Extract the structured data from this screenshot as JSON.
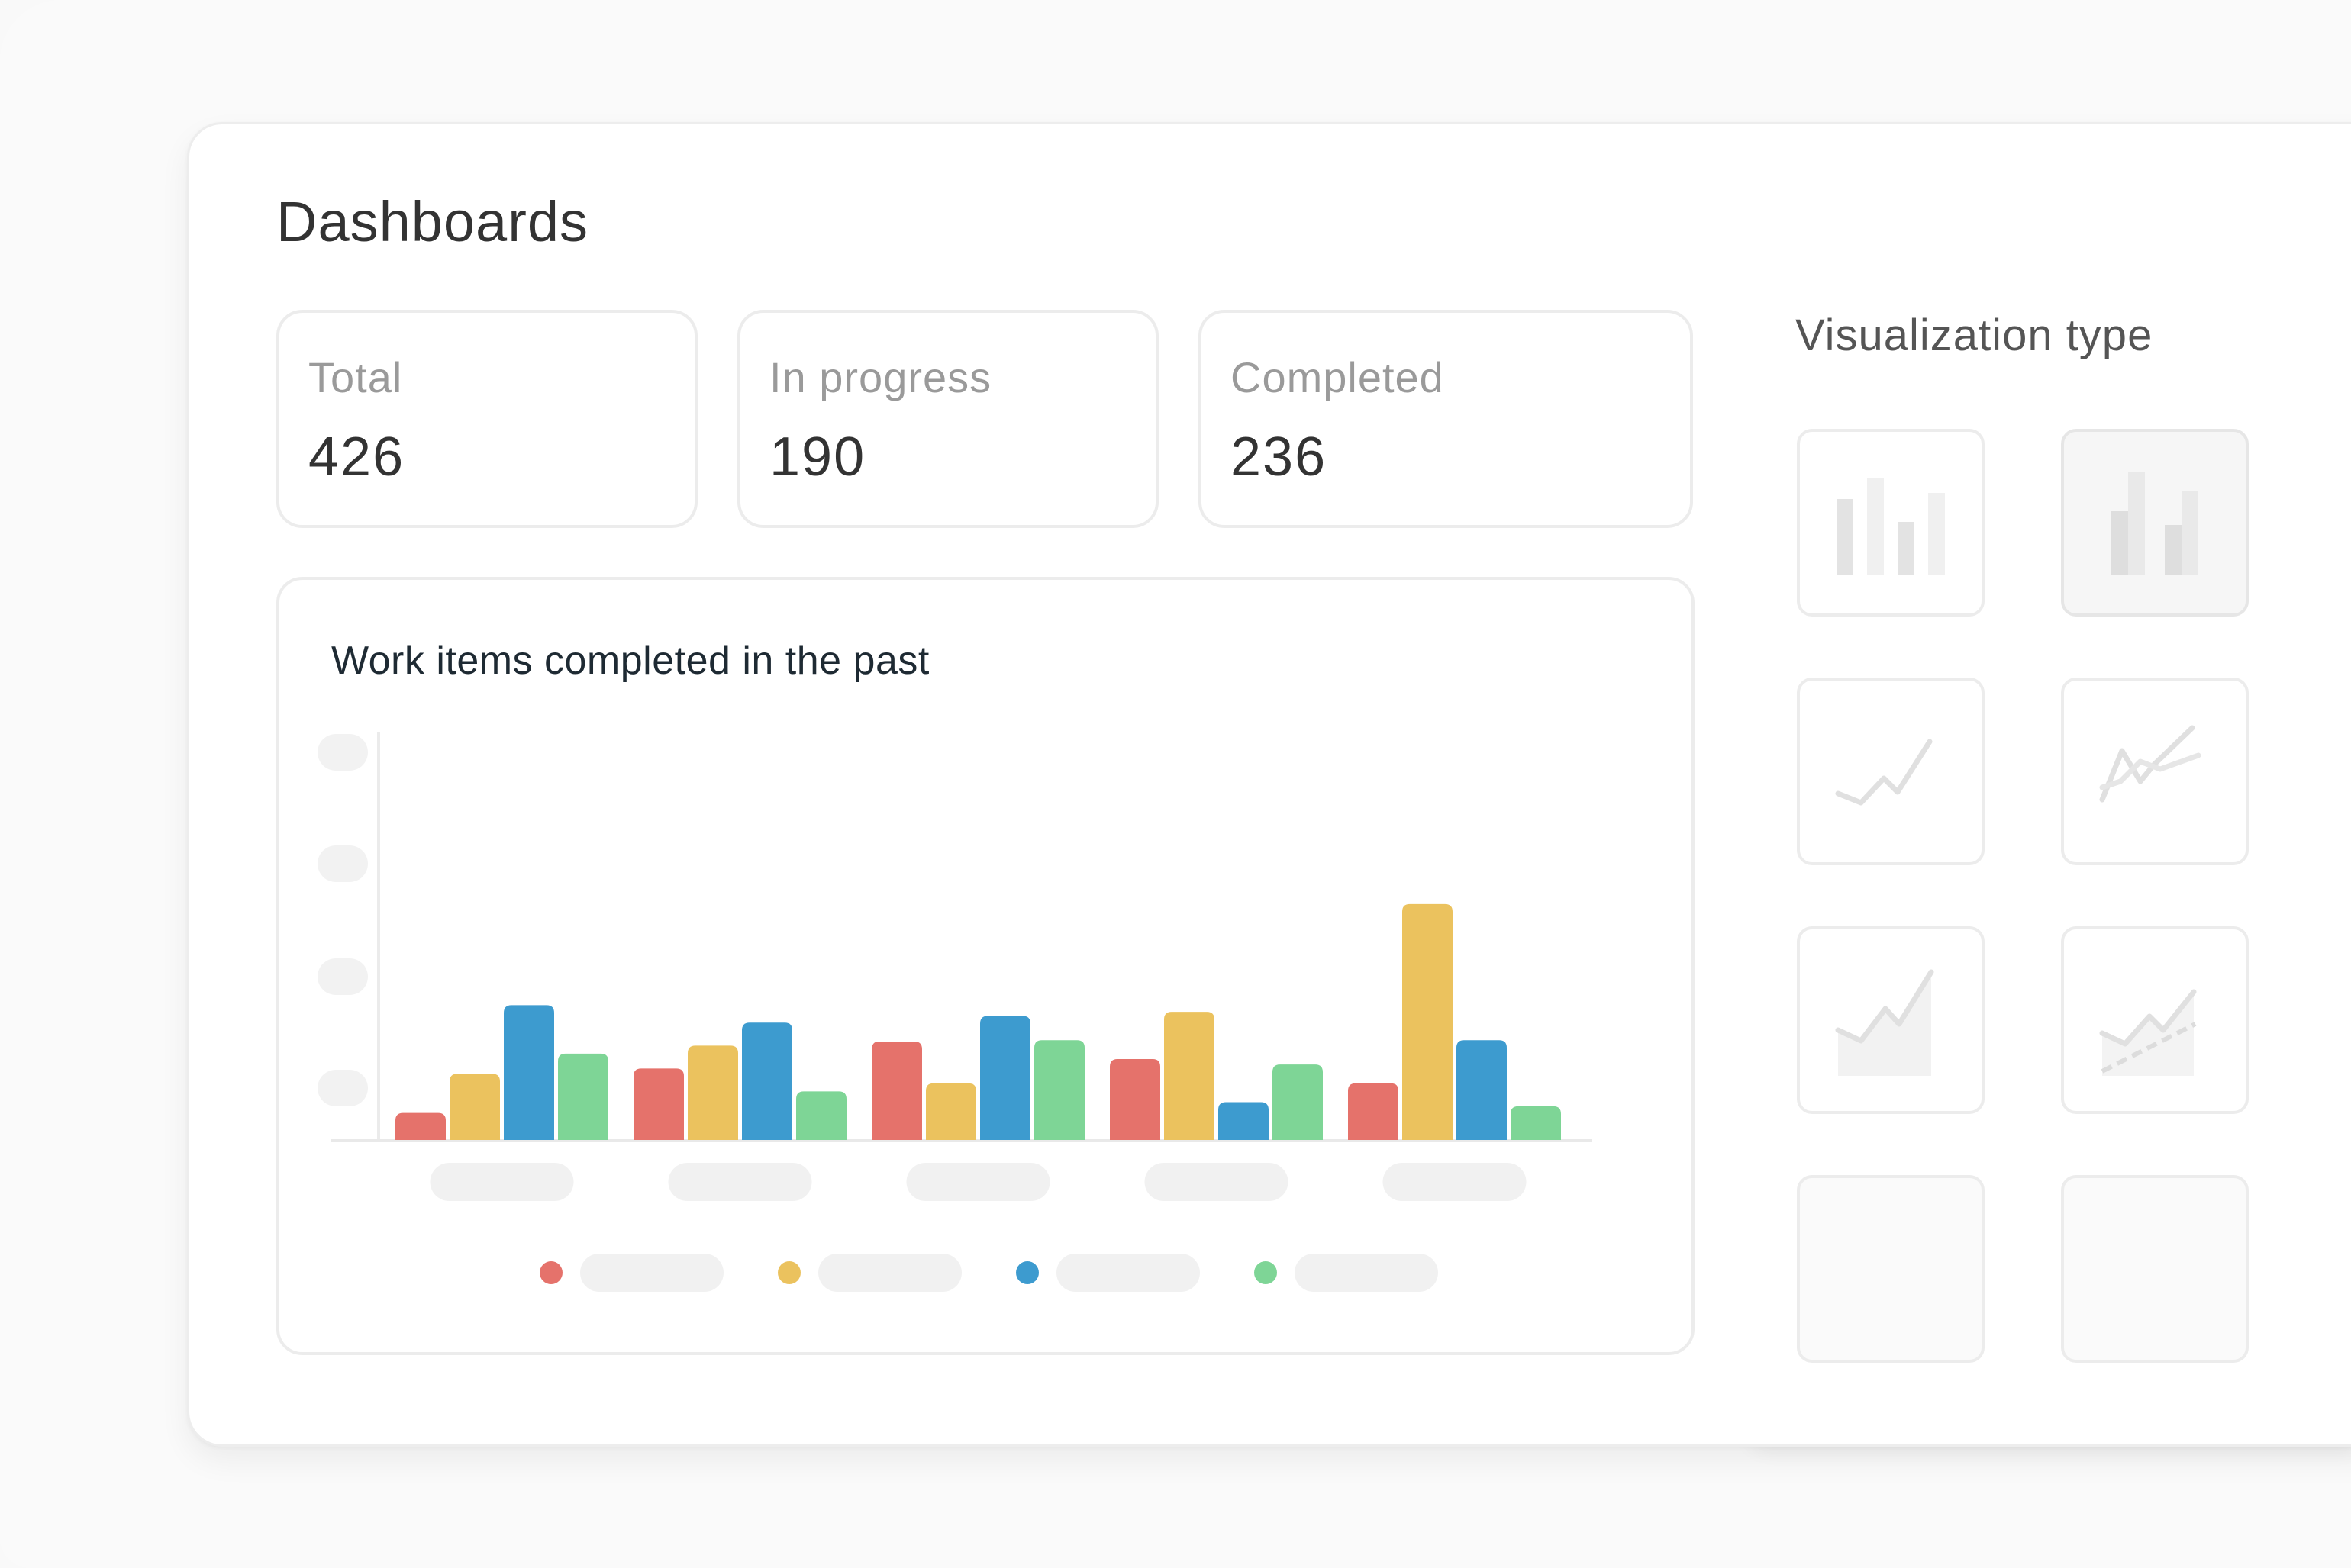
{
  "page": {
    "title": "Dashboards"
  },
  "stats": [
    {
      "label": "Total",
      "value": "426"
    },
    {
      "label": "In progress",
      "value": "190"
    },
    {
      "label": "Completed",
      "value": "236"
    }
  ],
  "chart_data": {
    "type": "bar",
    "title": "Work items completed in the past",
    "categories": [
      "",
      "",
      "",
      "",
      ""
    ],
    "series": [
      {
        "color": "#e5726b",
        "values": [
          2,
          5.3,
          7.3,
          6.0,
          4.2
        ]
      },
      {
        "color": "#ebc25e",
        "values": [
          4.9,
          7.0,
          4.2,
          9.5,
          17.5
        ]
      },
      {
        "color": "#3d9bcf",
        "values": [
          10.0,
          8.7,
          9.2,
          2.8,
          7.4
        ]
      },
      {
        "color": "#7ed596",
        "values": [
          6.4,
          3.6,
          7.4,
          5.6,
          2.5
        ]
      }
    ],
    "ylim": [
      0,
      30
    ],
    "y_tick_count": 4,
    "legend_placement": "bottom-center",
    "grid": false
  },
  "visualization": {
    "title": "Visualization type",
    "options": [
      {
        "icon": "bar-chart-icon",
        "selected": false
      },
      {
        "icon": "stacked-bar-chart-icon",
        "selected": true
      },
      {
        "icon": "line-chart-icon",
        "selected": false
      },
      {
        "icon": "multi-line-chart-icon",
        "selected": false
      },
      {
        "icon": "area-chart-icon",
        "selected": false
      },
      {
        "icon": "area-trend-chart-icon",
        "selected": false
      },
      {
        "icon": "empty-slot-icon",
        "selected": false
      },
      {
        "icon": "empty-slot-icon",
        "selected": false
      }
    ]
  }
}
